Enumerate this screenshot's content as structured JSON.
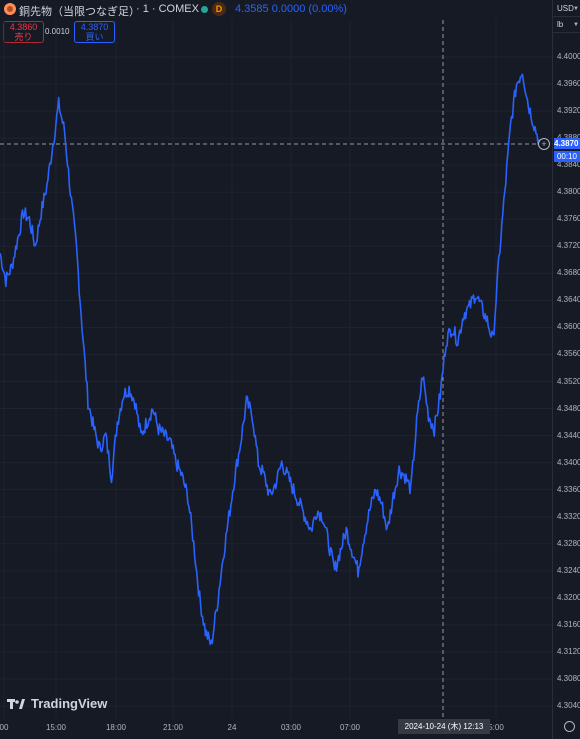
{
  "header": {
    "symbol": "銅先物（当限つなぎ足）",
    "interval": "· 1 · COMEX",
    "badge": "D",
    "quote": "4.3585  0.0000 (0.00%)"
  },
  "trade": {
    "sell_price": "4.3860",
    "sell_label": "売り",
    "spread": "0.0010",
    "buy_price": "4.3870",
    "buy_label": "買い"
  },
  "axis_right": {
    "currency": "USD",
    "unit": "lb",
    "current_price": "4.3870",
    "countdown": "00:10"
  },
  "x_tooltip": "2024-10-24 (木)   12:13",
  "brand": "TradingView",
  "colors": {
    "line": "#2962ff",
    "background": "#161a25",
    "sell": "#f23645",
    "buy": "#2962ff"
  },
  "chart_data": {
    "type": "line",
    "series": [
      {
        "values": [
          4.371,
          4.367,
          4.369,
          4.373,
          4.377,
          4.376,
          4.372,
          4.377,
          4.381,
          4.387,
          4.393,
          4.389,
          4.38,
          4.372,
          4.36,
          4.349,
          4.345,
          4.342,
          4.344,
          4.338,
          4.346,
          4.35,
          4.351,
          4.349,
          4.344,
          4.346,
          4.348,
          4.345,
          4.344,
          4.343,
          4.34,
          4.338,
          4.335,
          4.328,
          4.32,
          4.315,
          4.313,
          4.319,
          4.326,
          4.332,
          4.338,
          4.343,
          4.349,
          4.347,
          4.34,
          4.338,
          4.335,
          4.337,
          4.34,
          4.338,
          4.336,
          4.334,
          4.332,
          4.33,
          4.333,
          4.332,
          4.328,
          4.324,
          4.327,
          4.33,
          4.327,
          4.324,
          4.329,
          4.333,
          4.336,
          4.334,
          4.33,
          4.335,
          4.339,
          4.338,
          4.336,
          4.346,
          4.353,
          4.347,
          4.345,
          4.35,
          4.358,
          4.36,
          4.358,
          4.362,
          4.363,
          4.365,
          4.363,
          4.361,
          4.358,
          4.37,
          4.38,
          4.39,
          4.396,
          4.398,
          4.393,
          4.39,
          4.387
        ],
        "ticks": [
          "4.4000",
          "4.3960",
          "4.3920",
          "4.3880",
          "4.3840",
          "4.3800",
          "4.3760",
          "4.3720",
          "4.3680",
          "4.3640",
          "4.3600",
          "4.3560",
          "4.3520",
          "4.3480",
          "4.3440",
          "4.3400",
          "4.3360",
          "4.3320",
          "4.3280",
          "4.3240",
          "4.3200",
          "4.3160",
          "4.3120",
          "4.3080",
          "4.3040"
        ]
      }
    ],
    "x_ticks": [
      "00",
      "15:00",
      "18:00",
      "21:00",
      "24",
      "03:00",
      "07:00",
      "5:00"
    ],
    "ylim": [
      4.3035,
      4.4007
    ]
  }
}
